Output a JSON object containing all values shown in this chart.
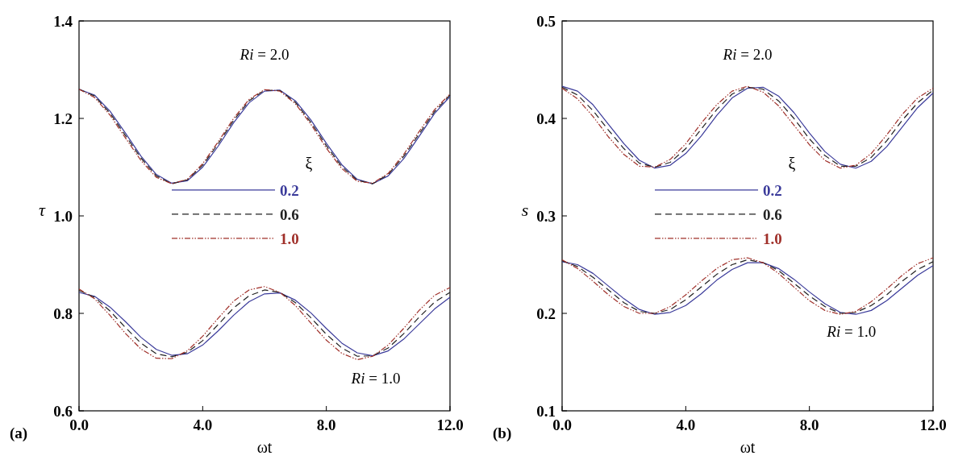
{
  "chart_data": [
    {
      "type": "line",
      "xlabel": "ωt",
      "ylabel": "τ",
      "legend_title": "ξ",
      "legend": "center",
      "grid": false,
      "marker": "none",
      "x": [
        0,
        0.5,
        1,
        1.5,
        2,
        2.5,
        3,
        3.5,
        4,
        4.5,
        5,
        5.5,
        6,
        6.5,
        7,
        7.5,
        8,
        8.5,
        9,
        9.5,
        10,
        10.5,
        11,
        11.5,
        12
      ],
      "xlim": [
        0,
        12
      ],
      "xticks": [
        {
          "value": 0,
          "label": "0.0"
        },
        {
          "value": 4,
          "label": "4.0"
        },
        {
          "value": 8,
          "label": "8.0"
        },
        {
          "value": 12,
          "label": "12.0"
        }
      ],
      "ylim": [
        0.6,
        1.4
      ],
      "yticks": [
        {
          "value": 0.6,
          "label": "0.6"
        },
        {
          "value": 0.8,
          "label": "0.8"
        },
        {
          "value": 1.0,
          "label": "1.0"
        },
        {
          "value": 1.2,
          "label": "1.2"
        },
        {
          "value": 1.4,
          "label": "1.4"
        }
      ],
      "annotations": [
        "Ri = 2.0",
        "Ri = 1.0",
        "(a)"
      ],
      "series": [
        {
          "name": "0.2",
          "color": "#3a3a9a",
          "line_style": "solid",
          "values": [
            1.26,
            1.248,
            1.215,
            1.17,
            1.123,
            1.085,
            1.067,
            1.072,
            1.1,
            1.143,
            1.191,
            1.232,
            1.256,
            1.258,
            1.236,
            1.197,
            1.149,
            1.105,
            1.075,
            1.066,
            1.082,
            1.117,
            1.163,
            1.21,
            1.245
          ]
        },
        {
          "name": "0.6",
          "color": "#222222",
          "line_style": "dashed",
          "values": [
            1.26,
            1.246,
            1.211,
            1.165,
            1.119,
            1.082,
            1.066,
            1.074,
            1.104,
            1.148,
            1.196,
            1.236,
            1.258,
            1.257,
            1.233,
            1.192,
            1.144,
            1.101,
            1.073,
            1.066,
            1.085,
            1.122,
            1.168,
            1.214,
            1.248
          ]
        },
        {
          "name": "1.0",
          "color": "#a0302a",
          "line_style": "dotted",
          "values": [
            1.26,
            1.243,
            1.207,
            1.16,
            1.114,
            1.079,
            1.066,
            1.075,
            1.107,
            1.152,
            1.2,
            1.239,
            1.259,
            1.256,
            1.23,
            1.188,
            1.139,
            1.097,
            1.071,
            1.067,
            1.087,
            1.126,
            1.173,
            1.218,
            1.25
          ]
        },
        {
          "color": "#3a3a9a",
          "line_style": "solid",
          "values": [
            0.843,
            0.835,
            0.813,
            0.783,
            0.751,
            0.726,
            0.714,
            0.717,
            0.735,
            0.764,
            0.796,
            0.824,
            0.84,
            0.842,
            0.827,
            0.801,
            0.769,
            0.739,
            0.719,
            0.713,
            0.723,
            0.747,
            0.778,
            0.809,
            0.833
          ]
        },
        {
          "color": "#222222",
          "line_style": "dashed",
          "values": [
            0.847,
            0.833,
            0.805,
            0.771,
            0.739,
            0.717,
            0.711,
            0.72,
            0.744,
            0.777,
            0.811,
            0.836,
            0.848,
            0.843,
            0.822,
            0.791,
            0.757,
            0.729,
            0.712,
            0.713,
            0.729,
            0.758,
            0.792,
            0.823,
            0.843
          ]
        },
        {
          "color": "#a0302a",
          "line_style": "dotted",
          "values": [
            0.85,
            0.83,
            0.796,
            0.759,
            0.727,
            0.708,
            0.707,
            0.723,
            0.753,
            0.79,
            0.825,
            0.848,
            0.855,
            0.843,
            0.816,
            0.78,
            0.745,
            0.718,
            0.705,
            0.712,
            0.735,
            0.769,
            0.806,
            0.837,
            0.853
          ]
        }
      ]
    },
    {
      "type": "line",
      "xlabel": "ωt",
      "ylabel": "s",
      "legend_title": "ξ",
      "legend": "center",
      "grid": false,
      "marker": "none",
      "x": [
        0,
        0.5,
        1,
        1.5,
        2,
        2.5,
        3,
        3.5,
        4,
        4.5,
        5,
        5.5,
        6,
        6.5,
        7,
        7.5,
        8,
        8.5,
        9,
        9.5,
        10,
        10.5,
        11,
        11.5,
        12
      ],
      "xlim": [
        0,
        12
      ],
      "xticks": [
        {
          "value": 0,
          "label": "0.0"
        },
        {
          "value": 4,
          "label": "4.0"
        },
        {
          "value": 8,
          "label": "8.0"
        },
        {
          "value": 12,
          "label": "12.0"
        }
      ],
      "ylim": [
        0.1,
        0.5
      ],
      "yticks": [
        0.1,
        0.2,
        0.3,
        0.4,
        0.5
      ],
      "annotations": [
        "Ri = 2.0",
        "Ri = 1.0",
        "(b)"
      ],
      "series": [
        {
          "name": "0.2",
          "color": "#3a3a9a",
          "line_style": "solid",
          "values": [
            0.433,
            0.428,
            0.414,
            0.394,
            0.374,
            0.357,
            0.349,
            0.352,
            0.364,
            0.382,
            0.403,
            0.421,
            0.431,
            0.432,
            0.423,
            0.406,
            0.385,
            0.366,
            0.353,
            0.349,
            0.356,
            0.371,
            0.391,
            0.411,
            0.426
          ]
        },
        {
          "name": "0.6",
          "color": "#222222",
          "line_style": "dashed",
          "values": [
            0.432,
            0.424,
            0.408,
            0.388,
            0.369,
            0.354,
            0.35,
            0.355,
            0.369,
            0.389,
            0.409,
            0.425,
            0.432,
            0.43,
            0.418,
            0.4,
            0.379,
            0.362,
            0.351,
            0.351,
            0.36,
            0.377,
            0.398,
            0.416,
            0.429
          ]
        },
        {
          "name": "1.0",
          "color": "#a0302a",
          "line_style": "dotted",
          "values": [
            0.431,
            0.42,
            0.402,
            0.381,
            0.363,
            0.351,
            0.35,
            0.358,
            0.374,
            0.395,
            0.414,
            0.428,
            0.433,
            0.427,
            0.413,
            0.393,
            0.373,
            0.357,
            0.349,
            0.352,
            0.364,
            0.383,
            0.404,
            0.421,
            0.431
          ]
        },
        {
          "color": "#3a3a9a",
          "line_style": "solid",
          "values": [
            0.253,
            0.25,
            0.241,
            0.228,
            0.215,
            0.204,
            0.199,
            0.201,
            0.208,
            0.22,
            0.234,
            0.245,
            0.252,
            0.252,
            0.246,
            0.235,
            0.222,
            0.21,
            0.201,
            0.199,
            0.203,
            0.213,
            0.226,
            0.239,
            0.249
          ]
        },
        {
          "color": "#222222",
          "line_style": "dashed",
          "values": [
            0.254,
            0.248,
            0.237,
            0.224,
            0.211,
            0.202,
            0.2,
            0.204,
            0.214,
            0.227,
            0.24,
            0.25,
            0.255,
            0.252,
            0.244,
            0.231,
            0.218,
            0.207,
            0.2,
            0.201,
            0.208,
            0.219,
            0.233,
            0.245,
            0.253
          ]
        },
        {
          "color": "#a0302a",
          "line_style": "dotted",
          "values": [
            0.255,
            0.246,
            0.233,
            0.219,
            0.207,
            0.2,
            0.2,
            0.207,
            0.219,
            0.233,
            0.246,
            0.255,
            0.257,
            0.252,
            0.241,
            0.227,
            0.213,
            0.203,
            0.199,
            0.202,
            0.212,
            0.225,
            0.239,
            0.251,
            0.257
          ]
        }
      ]
    }
  ]
}
